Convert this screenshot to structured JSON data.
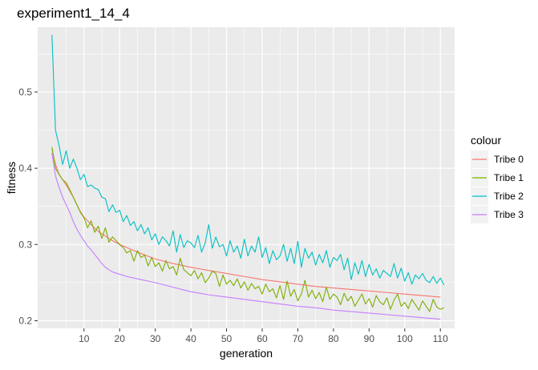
{
  "chart_data": {
    "type": "line",
    "title": "experiment1_14_4",
    "xlabel": "generation",
    "ylabel": "fitness",
    "xlim": [
      -3,
      114
    ],
    "ylim": [
      0.19,
      0.585
    ],
    "x_ticks": [
      10,
      20,
      30,
      40,
      50,
      60,
      70,
      80,
      90,
      100,
      110
    ],
    "y_ticks": [
      0.2,
      0.3,
      0.4,
      0.5
    ],
    "y_tick_labels": [
      "0.2",
      "0.3",
      "0.4",
      "0.5"
    ],
    "grid": true,
    "legend": {
      "title": "colour",
      "position": "right"
    },
    "colors": {
      "panel_bg": "#EBEBEB",
      "grid": "#FFFFFF"
    },
    "series": [
      {
        "name": "Tribe 0",
        "color": "#F8766D",
        "x": [
          1,
          2,
          3,
          4,
          5,
          6,
          7,
          8,
          9,
          10,
          12,
          14,
          16,
          18,
          20,
          25,
          30,
          35,
          40,
          45,
          50,
          55,
          60,
          65,
          70,
          75,
          80,
          85,
          90,
          95,
          100,
          105,
          110
        ],
        "values": [
          0.425,
          0.405,
          0.392,
          0.385,
          0.378,
          0.37,
          0.362,
          0.352,
          0.343,
          0.336,
          0.326,
          0.317,
          0.311,
          0.305,
          0.3,
          0.29,
          0.281,
          0.275,
          0.27,
          0.266,
          0.262,
          0.258,
          0.254,
          0.251,
          0.248,
          0.245,
          0.243,
          0.241,
          0.239,
          0.237,
          0.235,
          0.233,
          0.231
        ]
      },
      {
        "name": "Tribe 1",
        "color": "#7CAE00",
        "x": [
          1,
          2,
          3,
          4,
          5,
          6,
          7,
          8,
          9,
          10,
          11,
          12,
          13,
          14,
          15,
          16,
          17,
          18,
          19,
          20,
          21,
          22,
          23,
          24,
          25,
          26,
          27,
          28,
          29,
          30,
          31,
          32,
          33,
          34,
          35,
          36,
          37,
          38,
          39,
          40,
          41,
          42,
          43,
          44,
          45,
          46,
          47,
          48,
          49,
          50,
          51,
          52,
          53,
          54,
          55,
          56,
          57,
          58,
          59,
          60,
          61,
          62,
          63,
          64,
          65,
          66,
          67,
          68,
          69,
          70,
          71,
          72,
          73,
          74,
          75,
          76,
          77,
          78,
          79,
          80,
          81,
          82,
          83,
          84,
          85,
          86,
          87,
          88,
          89,
          90,
          91,
          92,
          93,
          94,
          95,
          96,
          97,
          98,
          99,
          100,
          101,
          102,
          103,
          104,
          105,
          106,
          107,
          108,
          109,
          110,
          111
        ],
        "values": [
          0.428,
          0.4,
          0.392,
          0.385,
          0.381,
          0.372,
          0.362,
          0.352,
          0.342,
          0.335,
          0.322,
          0.331,
          0.316,
          0.324,
          0.308,
          0.322,
          0.303,
          0.31,
          0.305,
          0.3,
          0.296,
          0.289,
          0.292,
          0.278,
          0.292,
          0.283,
          0.286,
          0.272,
          0.283,
          0.271,
          0.276,
          0.265,
          0.279,
          0.268,
          0.271,
          0.26,
          0.282,
          0.267,
          0.263,
          0.259,
          0.266,
          0.255,
          0.263,
          0.25,
          0.256,
          0.265,
          0.262,
          0.245,
          0.26,
          0.248,
          0.253,
          0.246,
          0.255,
          0.243,
          0.251,
          0.24,
          0.249,
          0.242,
          0.245,
          0.235,
          0.248,
          0.238,
          0.242,
          0.23,
          0.246,
          0.228,
          0.252,
          0.232,
          0.241,
          0.226,
          0.235,
          0.253,
          0.231,
          0.24,
          0.229,
          0.237,
          0.225,
          0.244,
          0.228,
          0.235,
          0.231,
          0.221,
          0.236,
          0.226,
          0.232,
          0.219,
          0.227,
          0.235,
          0.222,
          0.229,
          0.218,
          0.233,
          0.225,
          0.221,
          0.23,
          0.215,
          0.227,
          0.235,
          0.219,
          0.224,
          0.216,
          0.228,
          0.221,
          0.214,
          0.226,
          0.219,
          0.212,
          0.228,
          0.218,
          0.215,
          0.217
        ]
      },
      {
        "name": "Tribe 2",
        "color": "#00BFC4",
        "x": [
          1,
          2,
          3,
          4,
          5,
          6,
          7,
          8,
          9,
          10,
          11,
          12,
          13,
          14,
          15,
          16,
          17,
          18,
          19,
          20,
          21,
          22,
          23,
          24,
          25,
          26,
          27,
          28,
          29,
          30,
          31,
          32,
          33,
          34,
          35,
          36,
          37,
          38,
          39,
          40,
          41,
          42,
          43,
          44,
          45,
          46,
          47,
          48,
          49,
          50,
          51,
          52,
          53,
          54,
          55,
          56,
          57,
          58,
          59,
          60,
          61,
          62,
          63,
          64,
          65,
          66,
          67,
          68,
          69,
          70,
          71,
          72,
          73,
          74,
          75,
          76,
          77,
          78,
          79,
          80,
          81,
          82,
          83,
          84,
          85,
          86,
          87,
          88,
          89,
          90,
          91,
          92,
          93,
          94,
          95,
          96,
          97,
          98,
          99,
          100,
          101,
          102,
          103,
          104,
          105,
          106,
          107,
          108,
          109,
          110,
          111
        ],
        "values": [
          0.575,
          0.45,
          0.43,
          0.405,
          0.423,
          0.4,
          0.412,
          0.4,
          0.385,
          0.392,
          0.376,
          0.378,
          0.374,
          0.372,
          0.362,
          0.36,
          0.343,
          0.352,
          0.342,
          0.345,
          0.33,
          0.338,
          0.325,
          0.33,
          0.318,
          0.326,
          0.314,
          0.322,
          0.306,
          0.314,
          0.3,
          0.31,
          0.305,
          0.298,
          0.318,
          0.29,
          0.313,
          0.296,
          0.305,
          0.302,
          0.296,
          0.312,
          0.29,
          0.302,
          0.326,
          0.295,
          0.31,
          0.297,
          0.3,
          0.285,
          0.305,
          0.29,
          0.298,
          0.282,
          0.307,
          0.285,
          0.298,
          0.29,
          0.31,
          0.283,
          0.296,
          0.275,
          0.292,
          0.28,
          0.285,
          0.3,
          0.278,
          0.295,
          0.275,
          0.304,
          0.27,
          0.295,
          0.282,
          0.29,
          0.273,
          0.287,
          0.276,
          0.292,
          0.27,
          0.283,
          0.279,
          0.287,
          0.267,
          0.282,
          0.254,
          0.276,
          0.261,
          0.279,
          0.258,
          0.274,
          0.26,
          0.268,
          0.256,
          0.266,
          0.262,
          0.258,
          0.275,
          0.256,
          0.269,
          0.252,
          0.263,
          0.248,
          0.26,
          0.255,
          0.262,
          0.253,
          0.25,
          0.258,
          0.249,
          0.256,
          0.247
        ]
      },
      {
        "name": "Tribe 3",
        "color": "#C77CFF",
        "x": [
          1,
          2,
          3,
          4,
          5,
          6,
          7,
          8,
          9,
          10,
          11,
          12,
          13,
          14,
          15,
          16,
          17,
          18,
          20,
          22,
          24,
          26,
          28,
          30,
          35,
          40,
          45,
          50,
          55,
          60,
          65,
          70,
          75,
          80,
          85,
          90,
          95,
          100,
          105,
          110
        ],
        "values": [
          0.42,
          0.39,
          0.375,
          0.362,
          0.352,
          0.342,
          0.33,
          0.32,
          0.312,
          0.305,
          0.298,
          0.293,
          0.287,
          0.281,
          0.275,
          0.27,
          0.267,
          0.264,
          0.261,
          0.258,
          0.256,
          0.254,
          0.252,
          0.25,
          0.244,
          0.238,
          0.234,
          0.231,
          0.228,
          0.225,
          0.222,
          0.219,
          0.217,
          0.214,
          0.212,
          0.21,
          0.208,
          0.206,
          0.204,
          0.202
        ]
      }
    ]
  }
}
